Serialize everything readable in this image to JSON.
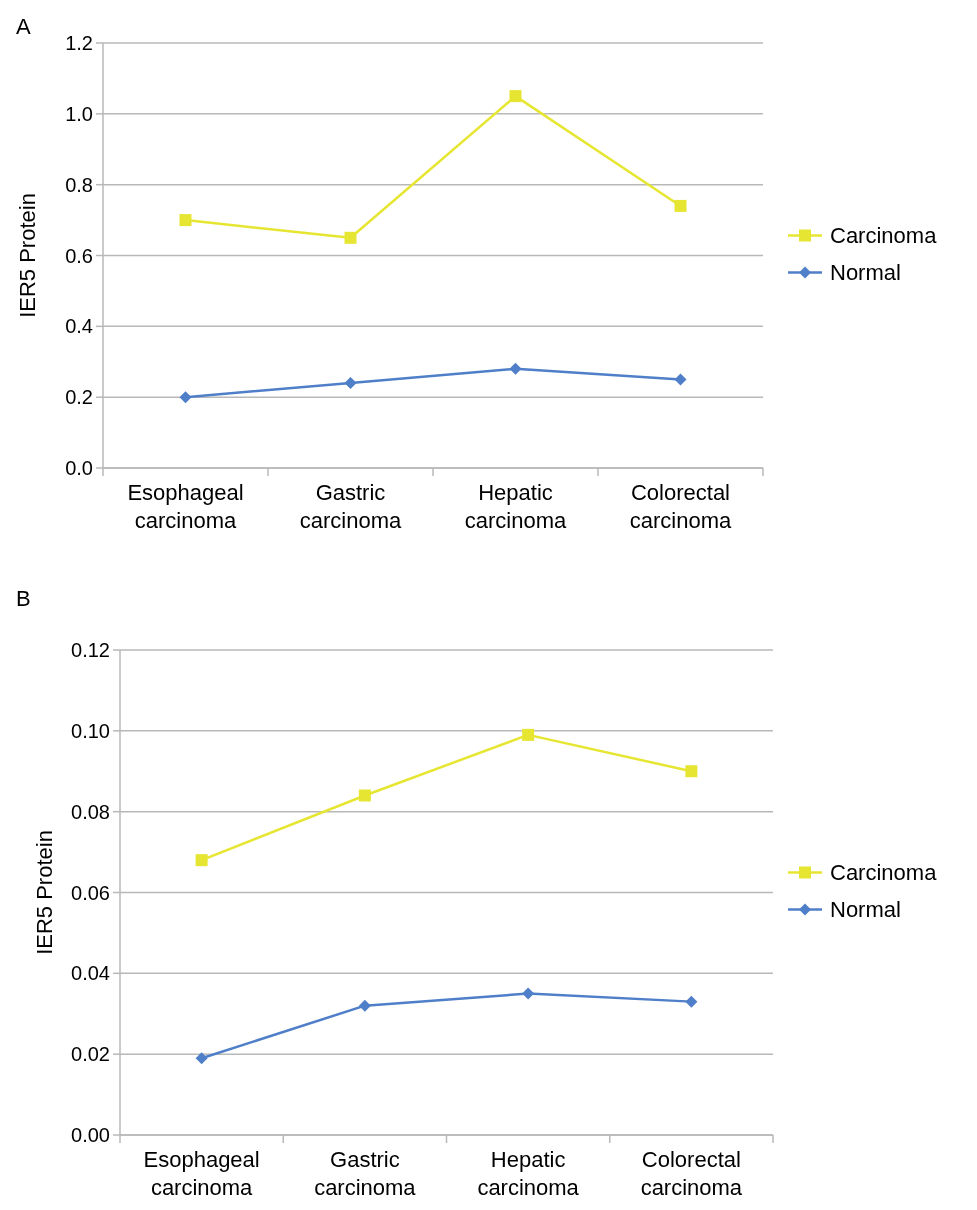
{
  "chart_data": [
    {
      "type": "line",
      "title": "A",
      "ylabel": "IER5 Protein",
      "categories": [
        "Esophageal carcinoma",
        "Gastric carcinoma",
        "Hepatic carcinoma",
        "Colorectal carcinoma"
      ],
      "series": [
        {
          "name": "Carcinoma",
          "color": "#e6e632",
          "marker": "square",
          "values": [
            0.7,
            0.65,
            1.05,
            0.74
          ]
        },
        {
          "name": "Normal",
          "color": "#4f7fc8",
          "marker": "diamond",
          "values": [
            0.2,
            0.24,
            0.28,
            0.25
          ]
        }
      ],
      "ylim": [
        0,
        1.2
      ],
      "yticks": [
        {
          "value": 0,
          "label": "0.0"
        },
        {
          "value": 0.2,
          "label": "0.2"
        },
        {
          "value": 0.4,
          "label": "0.4"
        },
        {
          "value": 0.6,
          "label": "0.6"
        },
        {
          "value": 0.8,
          "label": "0.8"
        },
        {
          "value": 1.0,
          "label": "1.0"
        },
        {
          "value": 1.2,
          "label": "1.2"
        }
      ],
      "grid": "y",
      "legend": "right",
      "line_style": "solid"
    },
    {
      "type": "line",
      "title": "B",
      "ylabel": "IER5 Protein",
      "categories": [
        "Esophageal carcinoma",
        "Gastric carcinoma",
        "Hepatic carcinoma",
        "Colorectal carcinoma"
      ],
      "series": [
        {
          "name": "Carcinoma",
          "color": "#e6e632",
          "marker": "square",
          "values": [
            0.068,
            0.084,
            0.099,
            0.09
          ]
        },
        {
          "name": "Normal",
          "color": "#4f7fc8",
          "marker": "diamond",
          "values": [
            0.019,
            0.032,
            0.035,
            0.033
          ]
        }
      ],
      "ylim": [
        0,
        0.12
      ],
      "yticks": [
        {
          "value": 0,
          "label": "0.00"
        },
        {
          "value": 0.02,
          "label": "0.02"
        },
        {
          "value": 0.04,
          "label": "0.04"
        },
        {
          "value": 0.06,
          "label": "0.06"
        },
        {
          "value": 0.08,
          "label": "0.08"
        },
        {
          "value": 0.1,
          "label": "0.10"
        },
        {
          "value": 0.12,
          "label": "0.12"
        }
      ],
      "grid": "y",
      "legend": "right",
      "line_style": "solid"
    }
  ]
}
